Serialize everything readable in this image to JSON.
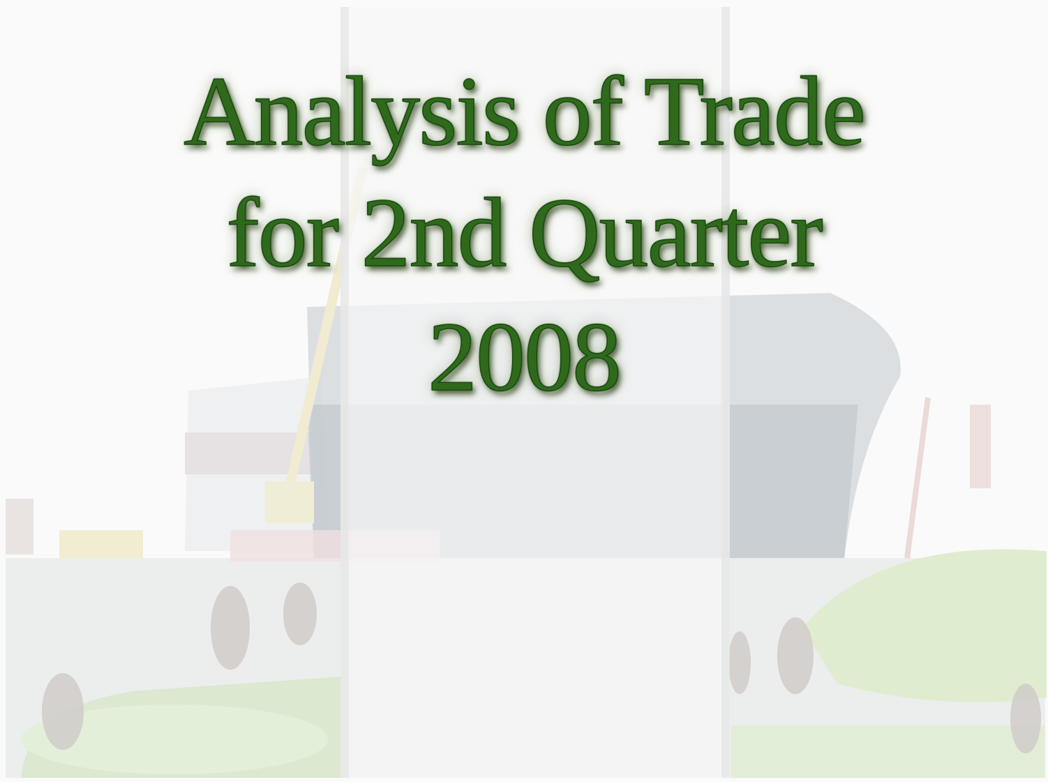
{
  "slide": {
    "title_lines": [
      "Analysis of Trade",
      "for 2nd Quarter",
      "2008"
    ]
  }
}
